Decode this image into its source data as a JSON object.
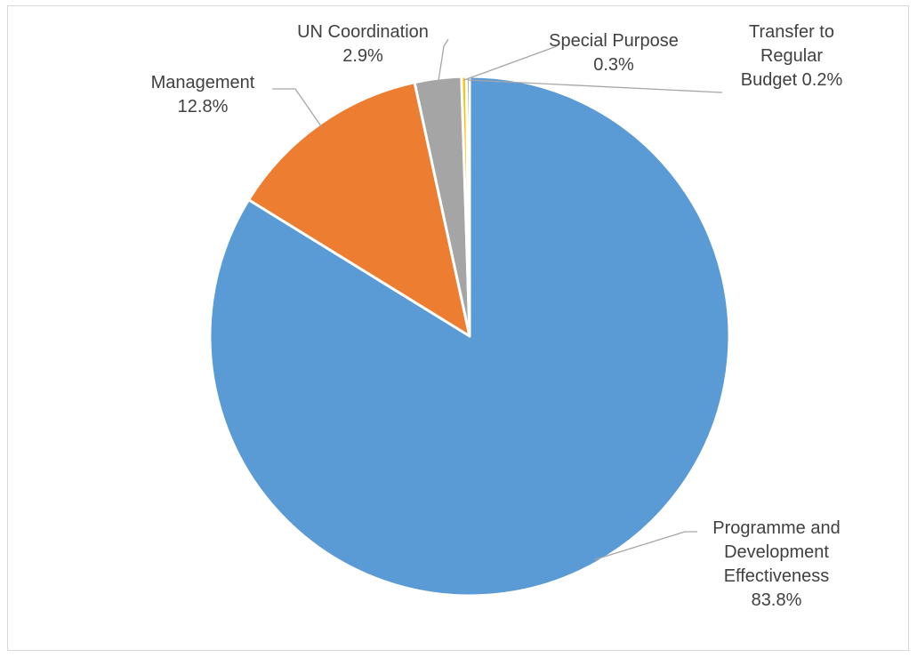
{
  "chart_data": {
    "type": "pie",
    "start_angle_deg": 0,
    "direction": "clockwise",
    "slices": [
      {
        "name": "Programme and Development Effectiveness",
        "label_lines": [
          "Programme and",
          "Development",
          "Effectiveness"
        ],
        "value": 83.8,
        "value_label": "83.8%",
        "color": "#5b9bd5"
      },
      {
        "name": "Management",
        "label_lines": [
          "Management"
        ],
        "value": 12.8,
        "value_label": "12.8%",
        "color": "#ed7d31"
      },
      {
        "name": "UN Coordination",
        "label_lines": [
          "UN Coordination"
        ],
        "value": 2.9,
        "value_label": "2.9%",
        "color": "#a5a5a5"
      },
      {
        "name": "Special Purpose",
        "label_lines": [
          "Special Purpose"
        ],
        "value": 0.3,
        "value_label": "0.3%",
        "color": "#ffc000"
      },
      {
        "name": "Transfer to Regular Budget",
        "label_lines": [
          "Transfer to",
          "Regular",
          "Budget 0.2%"
        ],
        "value": 0.2,
        "value_label": "",
        "color": "#4472c4"
      }
    ]
  }
}
